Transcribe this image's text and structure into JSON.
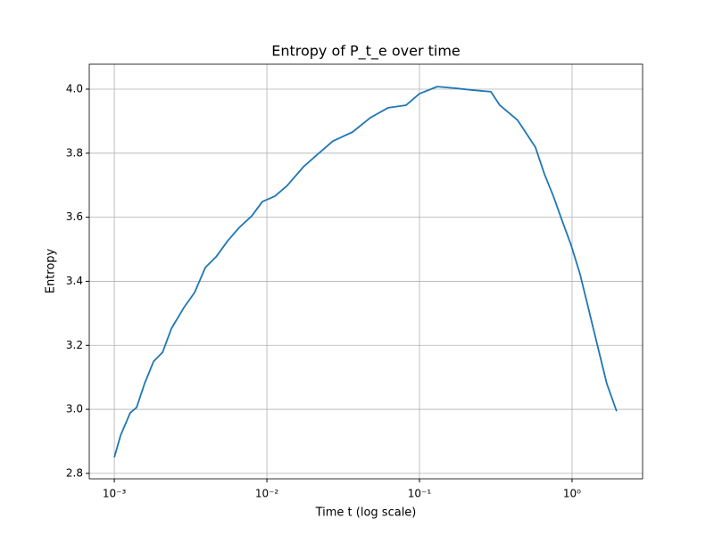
{
  "chart_data": {
    "type": "line",
    "title": "Entropy of P_t_e over time",
    "x_label": "Time t (log scale)",
    "y_label": "Entropy",
    "x": [
      0.001,
      0.0011,
      0.00127,
      0.0014,
      0.00158,
      0.00181,
      0.00207,
      0.00237,
      0.00286,
      0.00336,
      0.00395,
      0.00464,
      0.00553,
      0.00659,
      0.00796,
      0.00935,
      0.0113,
      0.0136,
      0.0174,
      0.0212,
      0.0271,
      0.0364,
      0.0477,
      0.0624,
      0.0817,
      0.1,
      0.131,
      0.171,
      0.224,
      0.294,
      0.336,
      0.44,
      0.575,
      0.659,
      0.754,
      0.863,
      0.986,
      1.13,
      1.29,
      1.48,
      1.69,
      1.96
    ],
    "values": [
      2.85,
      2.919,
      2.989,
      3.006,
      3.081,
      3.15,
      3.178,
      3.253,
      3.318,
      3.365,
      3.443,
      3.476,
      3.526,
      3.568,
      3.604,
      3.649,
      3.666,
      3.699,
      3.758,
      3.794,
      3.838,
      3.866,
      3.911,
      3.942,
      3.95,
      3.986,
      4.008,
      4.003,
      3.997,
      3.992,
      3.95,
      3.903,
      3.819,
      3.735,
      3.666,
      3.588,
      3.513,
      3.421,
      3.309,
      3.192,
      3.08,
      2.994
    ],
    "color": "#1f77b4",
    "x_scale": "log",
    "xlim": [
      0.000685,
      2.9
    ],
    "ylim": [
      2.783,
      4.078
    ],
    "xticks": [
      {
        "value": 0.001,
        "label": "10⁻³"
      },
      {
        "value": 0.01,
        "label": "10⁻²"
      },
      {
        "value": 0.1,
        "label": "10⁻¹"
      },
      {
        "value": 1,
        "label": "10⁰"
      }
    ],
    "yticks": [
      2.8,
      {
        "value": 3,
        "label": "3.0"
      },
      3.2,
      3.4,
      3.6,
      3.8,
      {
        "value": 4,
        "label": "4.0"
      }
    ],
    "grid": true
  }
}
